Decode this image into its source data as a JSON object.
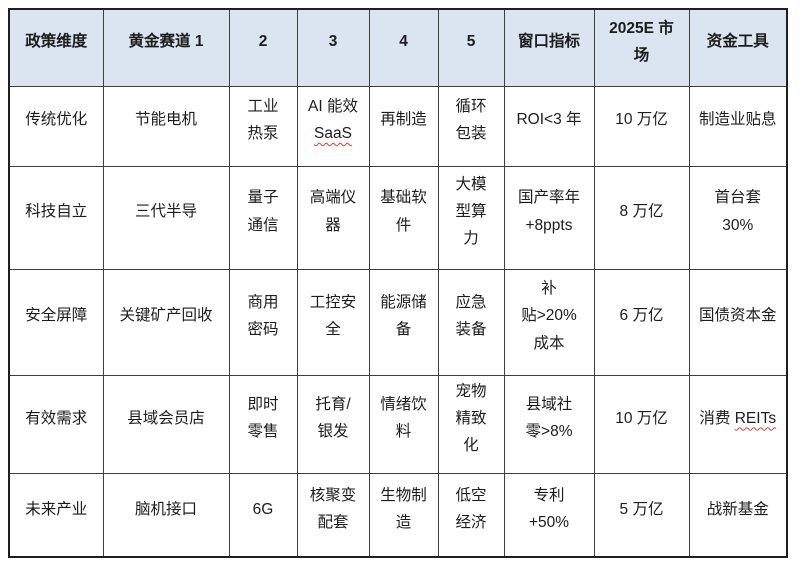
{
  "table": {
    "headers": [
      "政策维度",
      "黄金赛道 1",
      "2",
      "3",
      "4",
      "5",
      "窗口指标",
      "2025E 市\n场",
      "资金工具"
    ],
    "rows": [
      [
        "传统优化",
        "节能电机",
        "工业\n热泵",
        "AI 能效\nSaaS",
        "再制造",
        "循环\n包装",
        "ROI<3 年",
        "10 万亿",
        "制造业贴息"
      ],
      [
        "科技自立",
        "三代半导",
        "量子\n通信",
        "高端仪\n器",
        "基础软\n件",
        "大模\n型算\n力",
        "国产率年\n+8ppts",
        "8 万亿",
        "首台套\n30%"
      ],
      [
        "安全屏障",
        "关键矿产回收",
        "商用\n密码",
        "工控安\n全",
        "能源储\n备",
        "应急\n装备",
        "补\n贴>20%\n成本",
        "6 万亿",
        "国债资本金"
      ],
      [
        "有效需求",
        "县域会员店",
        "即时\n零售",
        "托育/\n银发",
        "情绪饮\n料",
        "宠物\n精致\n化",
        "县域社\n零>8%",
        "10 万亿",
        "消费 REITs"
      ],
      [
        "未来产业",
        "脑机接口",
        "6G",
        "核聚变\n配套",
        "生物制\n造",
        "低空\n经济",
        "专利\n+50%",
        "5 万亿",
        "战新基金"
      ]
    ],
    "spellcheck_words": [
      "SaaS",
      "REITs"
    ]
  },
  "colors": {
    "header_bg": "#dbe5f1",
    "border": "#3f3f3f",
    "outer_border": "#1f1f1f",
    "text": "#1c1c1c",
    "spellcheck_underline": "#e03d32"
  }
}
